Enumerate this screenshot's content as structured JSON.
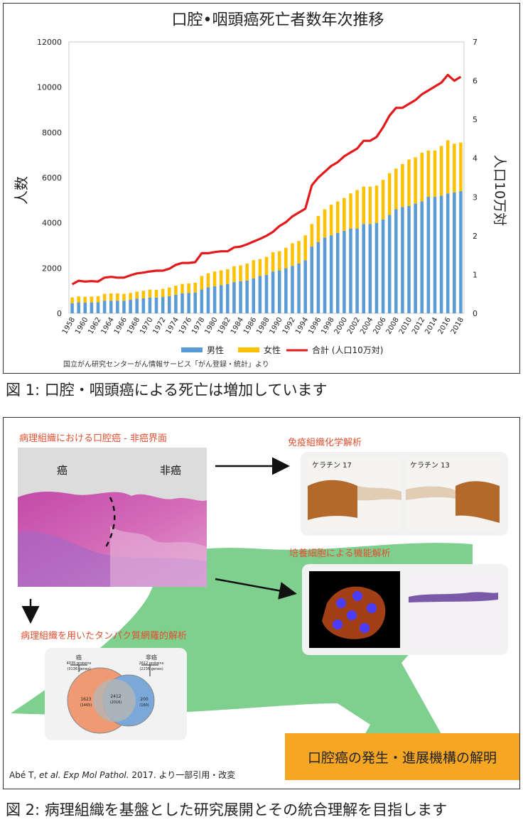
{
  "figure1": {
    "caption": "図 1: 口腔・咽頭癌による死亡は増加しています",
    "source_note": "国立がん研究センターがん情報サービス「がん登録・統計」より"
  },
  "chart_data": {
    "type": "bar",
    "title": "口腔•咽頭癌死亡者数年次推移",
    "ylabel": "人数",
    "y2label": "人口10万対",
    "ylim": [
      0,
      12000
    ],
    "y2lim": [
      0,
      7
    ],
    "yticks": [
      "0",
      "2000",
      "4000",
      "6000",
      "8000",
      "10000",
      "12000"
    ],
    "y2ticks": [
      "0",
      "1",
      "2",
      "3",
      "4",
      "5",
      "6",
      "7"
    ],
    "x": [
      1958,
      1959,
      1960,
      1961,
      1962,
      1963,
      1964,
      1965,
      1966,
      1967,
      1968,
      1969,
      1970,
      1971,
      1972,
      1973,
      1974,
      1975,
      1976,
      1977,
      1978,
      1979,
      1980,
      1981,
      1982,
      1983,
      1984,
      1985,
      1986,
      1987,
      1988,
      1989,
      1990,
      1991,
      1992,
      1993,
      1994,
      1995,
      1996,
      1997,
      1998,
      1999,
      2000,
      2001,
      2002,
      2003,
      2004,
      2005,
      2006,
      2007,
      2008,
      2009,
      2010,
      2011,
      2012,
      2013,
      2014,
      2015,
      2016,
      2017,
      2018
    ],
    "xtick_labels": [
      "1958",
      "1960",
      "1962",
      "1964",
      "1966",
      "1968",
      "1970",
      "1972",
      "1974",
      "1976",
      "1978",
      "1980",
      "1982",
      "1984",
      "1986",
      "1988",
      "1990",
      "1992",
      "1994",
      "1996",
      "1998",
      "2000",
      "2002",
      "2004",
      "2006",
      "2008",
      "2010",
      "2012",
      "2014",
      "2016",
      "2018"
    ],
    "series": [
      {
        "name": "男性",
        "color": "#5b9bd5",
        "type": "bar",
        "values": [
          450,
          480,
          470,
          480,
          490,
          560,
          560,
          560,
          560,
          600,
          650,
          660,
          700,
          700,
          720,
          760,
          820,
          880,
          900,
          920,
          1050,
          1150,
          1200,
          1250,
          1300,
          1380,
          1420,
          1450,
          1550,
          1650,
          1700,
          1850,
          1900,
          2000,
          2100,
          2200,
          2350,
          2950,
          3150,
          3350,
          3450,
          3550,
          3650,
          3750,
          3750,
          3950,
          3950,
          4000,
          4150,
          4350,
          4600,
          4700,
          4750,
          4850,
          4950,
          5150,
          5150,
          5200,
          5300,
          5350,
          5400
        ]
      },
      {
        "name": "女性",
        "color": "#ffc000",
        "type": "bar",
        "values": [
          250,
          270,
          260,
          260,
          270,
          300,
          320,
          320,
          300,
          300,
          310,
          340,
          350,
          340,
          360,
          380,
          400,
          420,
          420,
          430,
          600,
          620,
          650,
          650,
          650,
          700,
          700,
          750,
          800,
          750,
          800,
          850,
          850,
          900,
          1000,
          1000,
          1100,
          1000,
          1150,
          1250,
          1350,
          1400,
          1450,
          1550,
          1700,
          1650,
          1650,
          1650,
          1750,
          1850,
          1800,
          1900,
          2050,
          2050,
          2150,
          2050,
          2050,
          2200,
          2350,
          2150,
          2150
        ]
      },
      {
        "name": "合計 (人口10万対)",
        "color": "#e31a1c",
        "type": "line",
        "values": [
          0.75,
          0.84,
          0.82,
          0.83,
          0.82,
          0.92,
          0.94,
          0.92,
          0.92,
          0.98,
          1.03,
          1.05,
          1.08,
          1.1,
          1.1,
          1.15,
          1.25,
          1.3,
          1.3,
          1.32,
          1.55,
          1.55,
          1.58,
          1.6,
          1.6,
          1.7,
          1.72,
          1.78,
          1.85,
          1.92,
          2.0,
          2.1,
          2.25,
          2.35,
          2.5,
          2.6,
          2.7,
          3.3,
          3.5,
          3.65,
          3.8,
          3.9,
          4.05,
          4.15,
          4.25,
          4.45,
          4.45,
          4.55,
          4.8,
          5.1,
          5.3,
          5.3,
          5.4,
          5.5,
          5.65,
          5.75,
          5.85,
          5.95,
          6.15,
          6.0,
          6.1
        ]
      }
    ],
    "legend_position": "bottom",
    "grid": false
  },
  "figure2": {
    "caption": "図 2: 病理組織を基盤とした研究展開とその統合理解を目指します",
    "panel_pathology": "病理組織における口腔癌 - 非癌界面",
    "label_cancer": "癌",
    "label_noncancer": "非癌",
    "panel_ihc": "免疫組織化学解析",
    "keratin17": "ケラチン 17",
    "keratin13": "ケラチン 13",
    "panel_culture": "培養細胞による機能解析",
    "panel_proteomics": "病理組織を用いたタンパク質網羅的解析",
    "venn": {
      "left_title": "癌",
      "left_line1": "4035 proteins",
      "left_line2": "(3136 genes)",
      "right_title": "非癌",
      "right_line1": "2612 proteins",
      "right_line2": "(2236 genes)",
      "left_only": "1623",
      "left_only_sub": "(1465)",
      "both": "2412",
      "both_sub": "(2016)",
      "right_only": "200",
      "right_only_sub": "(180)"
    },
    "conclusion": "口腔癌の発生・進展機構の解明",
    "reference_prefix": "Abé T, ",
    "reference_italic": "et al. Exp Mol Pathol.",
    "reference_suffix": " 2017. より一部引用・改変"
  },
  "colors": {
    "accent_label": "#e05030",
    "arrow_green": "#7fcf8f",
    "conclusion_box": "#f5a623",
    "venn_left": "#ef9a72",
    "venn_right": "#7aa8d8",
    "venn_overlap": "#b5b5b5"
  }
}
